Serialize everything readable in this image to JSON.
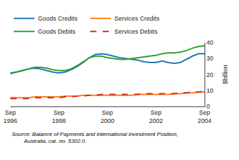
{
  "chart_data": {
    "type": "line",
    "ylabel": "$billion",
    "source": "Source: Balance of Payments and International Investment Position,\n        Australia, cat. no. 5302.0.",
    "categories": [
      "Sep\n1996",
      null,
      null,
      null,
      null,
      null,
      null,
      null,
      "Sep\n1998",
      null,
      null,
      null,
      null,
      null,
      null,
      null,
      "Sep\n2000",
      null,
      null,
      null,
      null,
      null,
      null,
      null,
      "Sep\n2002",
      null,
      null,
      null,
      null,
      null,
      null,
      null,
      "Sep\n2004"
    ],
    "series": [
      {
        "name": "Goods Credits",
        "line_style": "solid",
        "values": [
          21.0,
          21.5,
          22.5,
          23.5,
          24.0,
          23.5,
          22.5,
          21.5,
          21.0,
          21.5,
          23.0,
          25.0,
          27.5,
          30.5,
          32.5,
          33.0,
          32.5,
          31.5,
          30.5,
          30.0,
          29.5,
          29.0,
          28.0,
          27.5,
          27.5,
          28.5,
          27.5,
          27.0,
          27.5,
          29.5,
          31.5,
          33.0,
          33.0
        ]
      },
      {
        "name": "Services Credits",
        "line_style": "solid",
        "values": [
          5.5,
          5.5,
          5.5,
          5.5,
          6.0,
          6.0,
          6.0,
          6.0,
          6.0,
          6.5,
          6.5,
          6.5,
          7.0,
          7.0,
          7.0,
          7.0,
          7.0,
          7.0,
          7.0,
          7.0,
          7.0,
          7.5,
          7.5,
          7.5,
          7.5,
          7.5,
          7.5,
          8.0,
          8.0,
          8.5,
          8.5,
          9.0,
          9.0
        ]
      },
      {
        "name": "Goods Debits",
        "line_style": "solid",
        "values": [
          20.5,
          21.5,
          22.5,
          23.5,
          24.5,
          24.5,
          24.0,
          23.0,
          22.5,
          22.5,
          23.5,
          25.5,
          28.0,
          30.5,
          31.5,
          31.5,
          30.5,
          30.0,
          29.5,
          29.5,
          30.0,
          30.5,
          31.0,
          31.5,
          32.0,
          33.0,
          33.5,
          33.5,
          34.0,
          35.0,
          36.5,
          37.5,
          38.0
        ]
      },
      {
        "name": "Services Debits",
        "line_style": "dashed",
        "values": [
          5.0,
          5.0,
          5.0,
          5.0,
          5.5,
          5.5,
          5.5,
          5.5,
          5.5,
          6.0,
          6.0,
          6.5,
          6.5,
          7.0,
          7.0,
          7.5,
          7.5,
          7.5,
          7.5,
          7.5,
          7.5,
          7.5,
          8.0,
          8.0,
          8.0,
          8.0,
          8.0,
          8.0,
          8.5,
          8.5,
          9.0,
          9.0,
          9.5
        ]
      }
    ],
    "ylim": [
      0,
      40
    ],
    "yticks": [
      0,
      10,
      20,
      30,
      40
    ],
    "grid": false,
    "legend": "upper left"
  }
}
